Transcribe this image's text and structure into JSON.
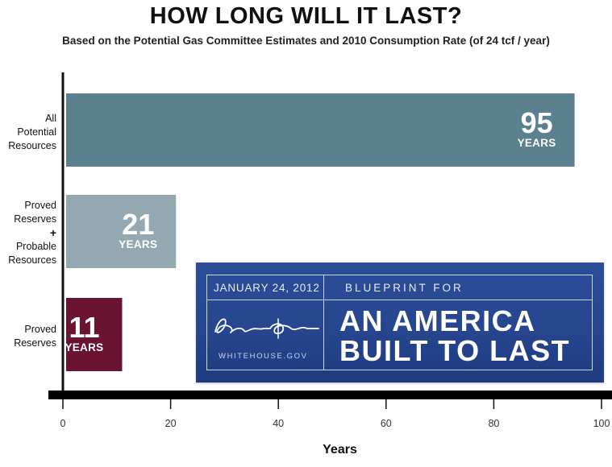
{
  "chart_data": {
    "type": "bar",
    "orientation": "horizontal",
    "title": "HOW LONG WILL IT LAST?",
    "subtitle": "Based on the Potential Gas Committee Estimates and 2010 Consumption Rate (of 24 tcf / year)",
    "xlabel": "Years",
    "ylabel": "",
    "xlim": [
      0,
      100
    ],
    "xticks": [
      "0",
      "20",
      "40",
      "60",
      "80",
      "100"
    ],
    "grid": false,
    "categories": [
      {
        "lines": [
          "All",
          "Potential",
          "Resources"
        ]
      },
      {
        "lines": [
          "Proved",
          "Reserves",
          "+",
          "Probable",
          "Resources"
        ]
      },
      {
        "lines": [
          "Proved",
          "Reserves"
        ]
      }
    ],
    "values": [
      95,
      21,
      11
    ],
    "value_labels": [
      "95",
      "21",
      "11"
    ],
    "unit_label": "YEARS",
    "colors": [
      "#5b818e",
      "#93a8b0",
      "#6b1432"
    ]
  },
  "banner": {
    "date": "JANUARY 24, 2012",
    "kicker": "BLUEPRINT FOR",
    "headline_1": "AN AMERICA",
    "headline_2": "BUILT TO LAST",
    "site": "WHITEHOUSE.GOV",
    "background": "#26458e"
  }
}
